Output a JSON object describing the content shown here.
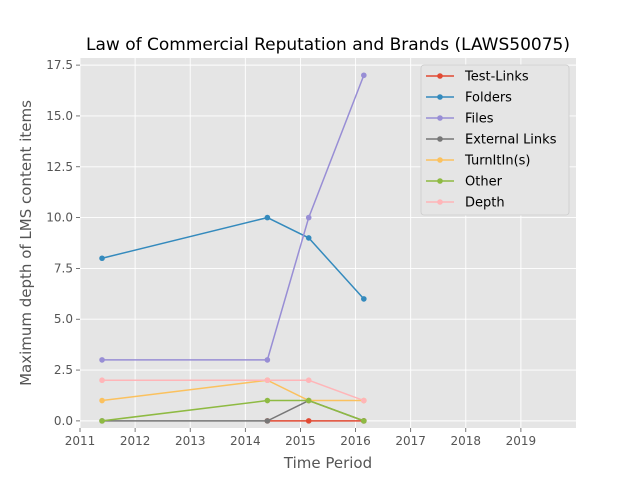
{
  "chart_data": {
    "type": "line",
    "title": "Law of Commercial Reputation and Brands (LAWS50075)",
    "xlabel": "Time Period",
    "ylabel": "Maximum depth of LMS content items",
    "xlim": [
      2011.0,
      2020.0
    ],
    "ylim": [
      -0.35,
      17.85
    ],
    "x_ticks": [
      2011,
      2012,
      2013,
      2014,
      2015,
      2016,
      2017,
      2018,
      2019
    ],
    "x_tick_labels": [
      "2011",
      "2012",
      "2013",
      "2014",
      "2015",
      "2016",
      "2017",
      "2018",
      "2019"
    ],
    "y_ticks": [
      0.0,
      2.5,
      5.0,
      7.5,
      10.0,
      12.5,
      15.0,
      17.5
    ],
    "y_tick_labels": [
      "0.0",
      "2.5",
      "5.0",
      "7.5",
      "10.0",
      "12.5",
      "15.0",
      "17.5"
    ],
    "grid": true,
    "legend_position": "top-right",
    "x": [
      2011.4,
      2014.4,
      2015.15,
      2016.15
    ],
    "series": [
      {
        "name": "Test-Links",
        "color": "#E24A33",
        "values": [
          null,
          0,
          0,
          0
        ]
      },
      {
        "name": "Folders",
        "color": "#348ABD",
        "values": [
          8,
          10,
          9,
          6
        ]
      },
      {
        "name": "Files",
        "color": "#988ED5",
        "values": [
          3,
          3,
          10,
          17
        ]
      },
      {
        "name": "External Links",
        "color": "#777777",
        "values": [
          0,
          0,
          1,
          0
        ]
      },
      {
        "name": "TurnItIn(s)",
        "color": "#FBC15E",
        "values": [
          1,
          2,
          1,
          1
        ]
      },
      {
        "name": "Other",
        "color": "#8EBA42",
        "values": [
          0,
          1,
          1,
          0
        ]
      },
      {
        "name": "Depth",
        "color": "#FFB5B8",
        "values": [
          2,
          2,
          2,
          1
        ]
      }
    ]
  },
  "colors": {
    "axes_background": "#E5E5E5",
    "grid": "#FFFFFF",
    "tick_text": "#555555",
    "label_text": "#555555",
    "title_text": "#000000"
  }
}
